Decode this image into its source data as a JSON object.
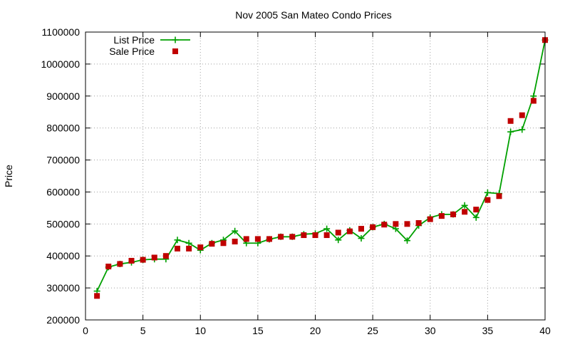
{
  "chart_data": {
    "type": "line",
    "title": "Nov 2005 San Mateo Condo Prices",
    "xlabel": "",
    "ylabel": "Price",
    "xlim": [
      0,
      40
    ],
    "ylim": [
      200000,
      1100000
    ],
    "x_ticks": [
      0,
      5,
      10,
      15,
      20,
      25,
      30,
      35,
      40
    ],
    "x_tick_labels": [
      "0",
      "5",
      "10",
      "15",
      "20",
      "25",
      "30",
      "35",
      "40"
    ],
    "y_ticks": [
      200000,
      300000,
      400000,
      500000,
      600000,
      700000,
      800000,
      900000,
      1000000,
      1100000
    ],
    "y_tick_labels": [
      "200000",
      "300000",
      "400000",
      "500000",
      "600000",
      "700000",
      "800000",
      "900000",
      "1000000",
      "1100000"
    ],
    "grid": true,
    "legend_position": "top-left",
    "x": [
      1,
      2,
      3,
      4,
      5,
      6,
      7,
      8,
      9,
      10,
      11,
      12,
      13,
      14,
      15,
      16,
      17,
      18,
      19,
      20,
      21,
      22,
      23,
      24,
      25,
      26,
      27,
      28,
      29,
      30,
      31,
      32,
      33,
      34,
      35,
      36,
      37,
      38,
      39,
      40
    ],
    "series": [
      {
        "name": "List Price",
        "style": "linespoints",
        "marker": "plus",
        "color": "#00a000",
        "values": [
          290000,
          365000,
          375000,
          380000,
          388000,
          390000,
          390000,
          450000,
          440000,
          418000,
          440000,
          450000,
          478000,
          440000,
          440000,
          452000,
          460000,
          460000,
          468000,
          470000,
          485000,
          450000,
          480000,
          455000,
          490000,
          500000,
          485000,
          448000,
          495000,
          520000,
          530000,
          530000,
          558000,
          520000,
          598000,
          595000,
          788000,
          795000,
          900000,
          1075000
        ]
      },
      {
        "name": "Sale Price",
        "style": "points",
        "marker": "square",
        "color": "#c00000",
        "values": [
          275000,
          367000,
          375000,
          385000,
          388000,
          395000,
          400000,
          423000,
          423000,
          427000,
          438000,
          440000,
          445000,
          453000,
          453000,
          453000,
          460000,
          460000,
          465000,
          465000,
          465000,
          473000,
          477000,
          485000,
          490000,
          498000,
          500000,
          500000,
          503000,
          515000,
          525000,
          530000,
          538000,
          545000,
          575000,
          587000,
          822000,
          840000,
          885000,
          1075000
        ]
      }
    ]
  }
}
